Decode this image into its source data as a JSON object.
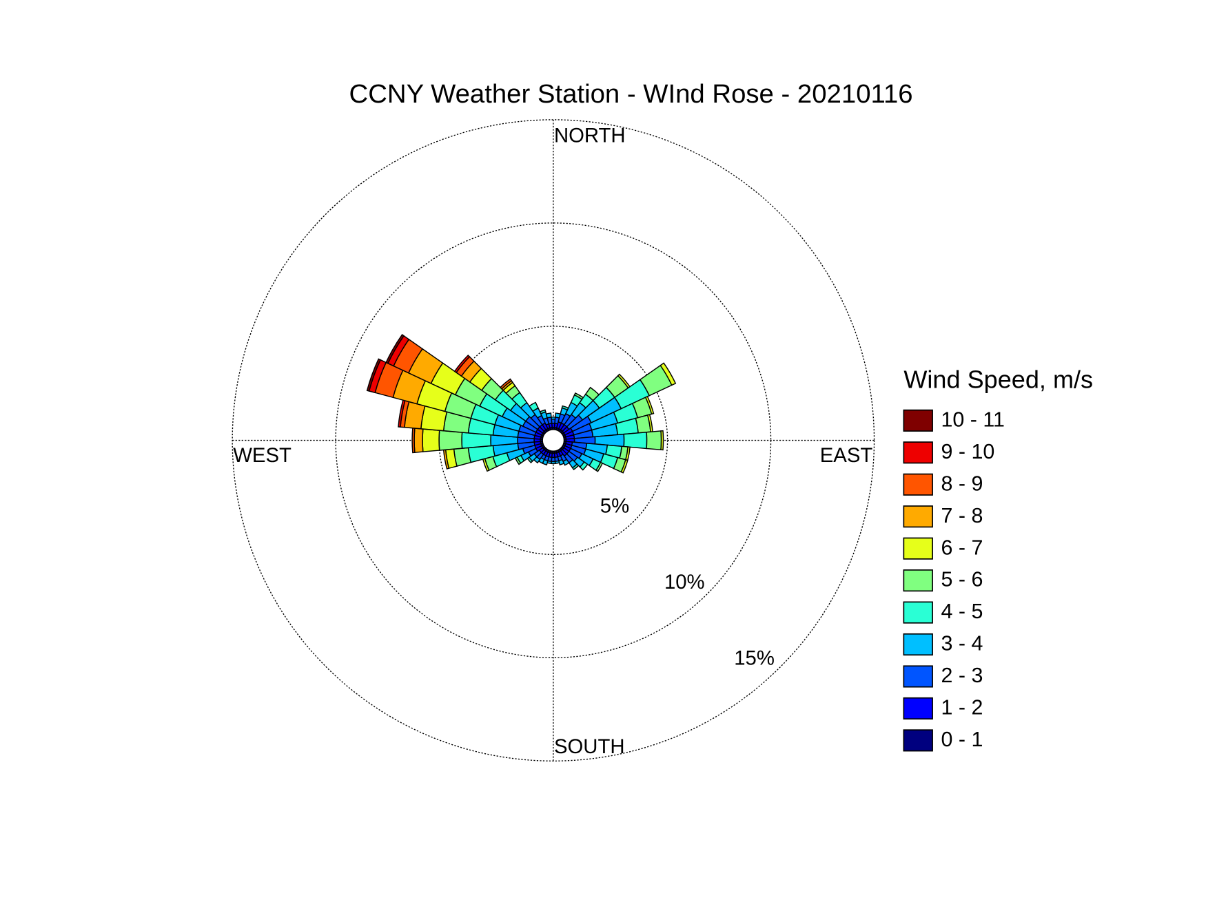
{
  "chart_data": {
    "type": "windrose",
    "title": "CCNY Weather Station - WInd Rose - 20210116",
    "direction_labels": {
      "north": "NORTH",
      "east": "EAST",
      "south": "SOUTH",
      "west": "WEST"
    },
    "legend_title": "Wind Speed, m/s",
    "legend": "right",
    "grid": true,
    "x": [
      0,
      10,
      20,
      30,
      40,
      50,
      60,
      70,
      80,
      90,
      100,
      110,
      120,
      130,
      140,
      150,
      160,
      170,
      180,
      190,
      200,
      210,
      220,
      230,
      240,
      250,
      260,
      270,
      280,
      290,
      300,
      310,
      320,
      330,
      340,
      350
    ],
    "ylim": [
      0,
      15
    ],
    "yticks": [
      {
        "value": 5,
        "label": "5%"
      },
      {
        "value": 10,
        "label": "10%"
      },
      {
        "value": 15,
        "label": "15%"
      }
    ],
    "series": [
      {
        "name": "0 - 1",
        "color": "#00007f",
        "values": [
          0.1,
          0.1,
          0.1,
          0.1,
          0.1,
          0.1,
          0.1,
          0.1,
          0.1,
          0.1,
          0.1,
          0.1,
          0.1,
          0.1,
          0.1,
          0.1,
          0.1,
          0.1,
          0.1,
          0.1,
          0.1,
          0.1,
          0.1,
          0.1,
          0.1,
          0.1,
          0.1,
          0.1,
          0.1,
          0.1,
          0.1,
          0.1,
          0.1,
          0.1,
          0.1,
          0.1
        ]
      },
      {
        "name": "1 - 2",
        "color": "#0000ff",
        "values": [
          0.2,
          0.2,
          0.3,
          0.3,
          0.3,
          0.3,
          0.4,
          0.4,
          0.4,
          0.4,
          0.3,
          0.3,
          0.3,
          0.3,
          0.3,
          0.2,
          0.2,
          0.2,
          0.2,
          0.2,
          0.2,
          0.2,
          0.2,
          0.2,
          0.3,
          0.3,
          0.3,
          0.3,
          0.3,
          0.3,
          0.3,
          0.3,
          0.3,
          0.3,
          0.2,
          0.2
        ]
      },
      {
        "name": "2 - 3",
        "color": "#0055ff",
        "values": [
          0.2,
          0.3,
          0.4,
          0.5,
          0.6,
          0.8,
          1.0,
          0.9,
          0.9,
          1.0,
          0.7,
          0.7,
          0.6,
          0.5,
          0.4,
          0.3,
          0.2,
          0.2,
          0.2,
          0.2,
          0.2,
          0.2,
          0.3,
          0.3,
          0.4,
          0.6,
          0.8,
          0.8,
          0.8,
          0.8,
          0.7,
          0.7,
          0.6,
          0.4,
          0.3,
          0.3
        ]
      },
      {
        "name": "3 - 4",
        "color": "#00bfff",
        "values": [
          0.1,
          0.2,
          0.3,
          0.6,
          0.7,
          1.0,
          1.6,
          1.3,
          1.2,
          1.4,
          1.0,
          0.9,
          0.6,
          0.4,
          0.3,
          0.2,
          0.2,
          0.1,
          0.1,
          0.1,
          0.2,
          0.2,
          0.2,
          0.3,
          0.4,
          0.8,
          1.2,
          1.3,
          1.2,
          1.2,
          1.1,
          0.9,
          0.7,
          0.4,
          0.3,
          0.2
        ]
      },
      {
        "name": "4 - 5",
        "color": "#2affd5",
        "values": [
          0,
          0,
          0.1,
          0.4,
          0.5,
          0.9,
          1.5,
          1.0,
          1.0,
          1.1,
          0.7,
          0.7,
          0.4,
          0.2,
          0.1,
          0,
          0,
          0,
          0,
          0,
          0,
          0,
          0,
          0.1,
          0.2,
          0.7,
          1.2,
          1.4,
          1.2,
          1.2,
          1.2,
          0.9,
          0.6,
          0.3,
          0.1,
          0
        ]
      },
      {
        "name": "5 - 6",
        "color": "#80ff80",
        "values": [
          0,
          0,
          0,
          0.1,
          0.4,
          0.8,
          1.2,
          0.7,
          0.6,
          0.7,
          0.3,
          0.4,
          0.1,
          0,
          0,
          0,
          0,
          0,
          0,
          0,
          0,
          0,
          0,
          0,
          0.1,
          0.4,
          0.7,
          1.1,
          1.2,
          1.3,
          1.3,
          0.8,
          0.4,
          0,
          0,
          0
        ]
      },
      {
        "name": "6 - 7",
        "color": "#e6ff1a",
        "values": [
          0,
          0,
          0,
          0,
          0,
          0.1,
          0.2,
          0.1,
          0.1,
          0.1,
          0.1,
          0.1,
          0,
          0,
          0,
          0,
          0,
          0,
          0,
          0,
          0,
          0,
          0,
          0,
          0,
          0.1,
          0.4,
          0.8,
          1.1,
          1.4,
          1.3,
          0.7,
          0.2,
          0,
          0,
          0
        ]
      },
      {
        "name": "7 - 8",
        "color": "#ffaa00",
        "values": [
          0,
          0,
          0,
          0,
          0,
          0,
          0,
          0,
          0,
          0,
          0,
          0,
          0,
          0,
          0,
          0,
          0,
          0,
          0,
          0,
          0,
          0,
          0,
          0,
          0,
          0,
          0.1,
          0.4,
          0.8,
          1.2,
          1.2,
          0.5,
          0.1,
          0,
          0,
          0
        ]
      },
      {
        "name": "8 - 9",
        "color": "#ff5500",
        "values": [
          0,
          0,
          0,
          0,
          0,
          0,
          0,
          0,
          0,
          0,
          0,
          0,
          0,
          0,
          0,
          0,
          0,
          0,
          0,
          0,
          0,
          0,
          0,
          0,
          0,
          0,
          0,
          0.1,
          0.2,
          0.9,
          0.8,
          0.3,
          0.1,
          0,
          0,
          0
        ]
      },
      {
        "name": "9 - 10",
        "color": "#ee0000",
        "values": [
          0,
          0,
          0,
          0,
          0,
          0,
          0,
          0,
          0,
          0,
          0,
          0,
          0,
          0,
          0,
          0,
          0,
          0,
          0,
          0,
          0,
          0,
          0,
          0,
          0,
          0,
          0,
          0,
          0.1,
          0.3,
          0.3,
          0.1,
          0,
          0,
          0,
          0
        ]
      },
      {
        "name": "10 - 11",
        "color": "#7f0000",
        "values": [
          0,
          0,
          0,
          0,
          0,
          0,
          0,
          0,
          0,
          0,
          0,
          0,
          0,
          0,
          0,
          0,
          0,
          0,
          0,
          0,
          0,
          0,
          0,
          0,
          0,
          0,
          0,
          0,
          0,
          0.1,
          0.1,
          0,
          0,
          0,
          0,
          0
        ]
      }
    ]
  }
}
